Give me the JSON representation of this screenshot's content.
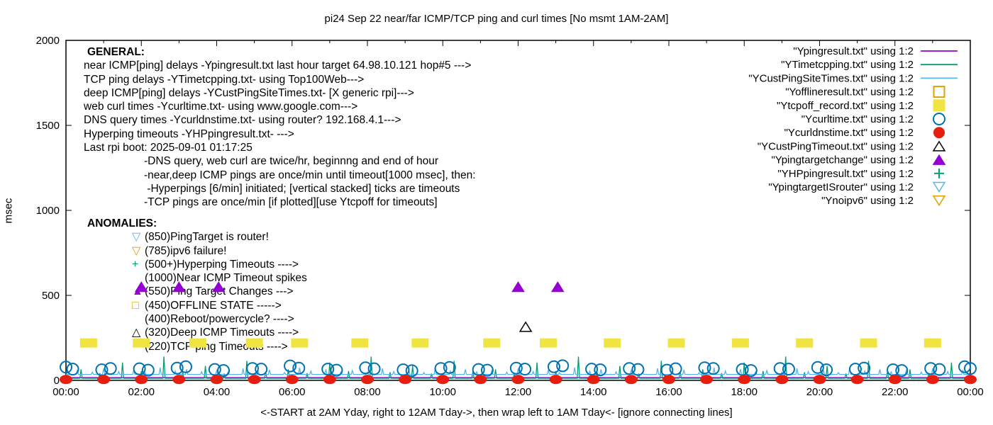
{
  "title": "pi24 Sep 22  near/far ICMP/TCP ping and curl times [No msmt 1AM-2AM]",
  "y_axis": {
    "label": "msec",
    "ticks": [
      0,
      500,
      1000,
      1500,
      2000
    ],
    "ylim": [
      0,
      2000
    ]
  },
  "x_axis": {
    "label": "<-START at 2AM Yday, right to 12AM Tday->, then wrap left to 1AM Tday<- [ignore connecting lines]",
    "tick_labels": [
      "00:00",
      "02:00",
      "04:00",
      "06:00",
      "08:00",
      "10:00",
      "12:00",
      "14:00",
      "16:00",
      "18:00",
      "20:00",
      "22:00",
      "00:00"
    ],
    "tick_step_hours": 2,
    "xlim_hours": [
      0,
      24
    ]
  },
  "general": {
    "heading": "GENERAL:",
    "lines": [
      "near ICMP[ping] delays -Ypingresult.txt last hour target 64.98.10.121 hop#5 --->",
      "TCP ping delays -YTimetcpping.txt- using Top100Web--->",
      "deep ICMP[ping] delays -YCustPingSiteTimes.txt- [X generic rpi]--->",
      "web curl times -Ycurltime.txt- using www.google.com--->",
      "DNS query times -Ycurldnstime.txt- using router? 192.168.4.1--->",
      "Hyperping timeouts -YHPpingresult.txt- --->",
      "Last rpi boot: 2025-09-01 01:17:25"
    ],
    "indented_lines": [
      "-DNS query, web curl are twice/hr, beginnng and end of hour",
      "-near,deep ICMP pings are once/min until timeout[1000 msec], then:",
      " -Hyperpings [6/min] initiated; [vertical stacked] ticks are timeouts",
      "-TCP pings are once/min [if plotted][use Ytcpoff for timeouts]"
    ]
  },
  "anomalies": {
    "heading": "ANOMALIES:",
    "lines": [
      {
        "marker": "triangle-down-open",
        "color": "#56b4e9",
        "text": "(850)PingTarget is router!"
      },
      {
        "marker": "triangle-down-open",
        "color": "#e69f00",
        "text": "(785)ipv6 failure!"
      },
      {
        "marker": "plus",
        "color": "#009e73",
        "text": "(500+)Hyperping Timeouts ---->"
      },
      {
        "marker": "none",
        "color": "#000000",
        "text": "(1000)Near ICMP Timeout spikes"
      },
      {
        "marker": "triangle-fill",
        "color": "#9400d3",
        "text": "(550)Ping Target Changes --->"
      },
      {
        "marker": "square-open",
        "color": "#e69f00",
        "text": "(450)OFFLINE STATE ----->"
      },
      {
        "marker": "none",
        "color": "#000000",
        "text": "(400)Reboot/powercycle? ---->"
      },
      {
        "marker": "triangle-open",
        "color": "#000000",
        "text": "(320)Deep ICMP Timeouts ---->"
      },
      {
        "marker": "none",
        "color": "#000000",
        "text": "(220)TCP ping Timeouts ---->"
      }
    ]
  },
  "legend": {
    "position": "top-right",
    "entries": [
      {
        "label": "\"Ypingresult.txt\" using 1:2",
        "marker": "line",
        "color": "#9400d3"
      },
      {
        "label": "\"YTimetcpping.txt\" using 1:2",
        "marker": "line",
        "color": "#009e73"
      },
      {
        "label": "\"YCustPingSiteTimes.txt\" using 1:2",
        "marker": "line",
        "color": "#56b4e9"
      },
      {
        "label": "\"Yofflineresult.txt\" using 1:2",
        "marker": "square-open",
        "color": "#e69f00"
      },
      {
        "label": "\"Ytcpoff_record.txt\" using 1:2",
        "marker": "square-fill",
        "color": "#f0e442"
      },
      {
        "label": "\"Ycurltime.txt\" using 1:2",
        "marker": "circle-open",
        "color": "#0072b2"
      },
      {
        "label": "\"Ycurldnstime.txt\" using 1:2",
        "marker": "circle-fill",
        "color": "#e51e10"
      },
      {
        "label": "\"YCustPingTimeout.txt\" using 1:2",
        "marker": "triangle-open",
        "color": "#000000"
      },
      {
        "label": "\"Ypingtargetchange\" using 1:2",
        "marker": "triangle-fill",
        "color": "#9400d3"
      },
      {
        "label": "\"YHPpingresult.txt\" using 1:2",
        "marker": "plus",
        "color": "#009e73"
      },
      {
        "label": "\"YpingtargetISrouter\" using 1:2",
        "marker": "triangle-down-open",
        "color": "#56b4e9"
      },
      {
        "label": "\"Ynoipv6\" using 1:2",
        "marker": "triangle-down-open",
        "color": "#e69f00"
      }
    ]
  },
  "chart_data": {
    "type": "line",
    "x_unit": "hour of day (wrapped: starts 2AM yesterday)",
    "xlim": [
      0,
      24
    ],
    "ylim": [
      0,
      2000
    ],
    "grid": false,
    "series": [
      {
        "name": "Ypingresult.txt",
        "style": "line",
        "color": "#9400d3",
        "points": [
          [
            0,
            16
          ],
          [
            24,
            16
          ]
        ]
      },
      {
        "name": "YTimetcpping.txt",
        "style": "baseline-spikes",
        "color": "#009e73",
        "baseline": 12,
        "spike_hours": [
          0.4,
          0.9,
          1.5,
          2.0,
          2.6,
          3.1,
          3.7,
          4.2,
          4.8,
          5.3,
          5.9,
          6.4,
          7.0,
          7.5,
          8.1,
          8.6,
          9.2,
          9.7,
          10.3,
          10.8,
          11.4,
          11.9,
          12.5,
          13.0,
          13.6,
          14.1,
          14.7,
          15.2,
          15.8,
          16.3,
          16.9,
          17.4,
          18.0,
          18.5,
          19.1,
          19.6,
          20.2,
          20.7,
          21.3,
          21.8,
          22.4,
          22.9,
          23.5
        ],
        "spike_heights": [
          65,
          42,
          105,
          55,
          140,
          48,
          85,
          40,
          115,
          52,
          65,
          42,
          105,
          55,
          140,
          48,
          85,
          40,
          115,
          52,
          65,
          42,
          105,
          55,
          140,
          48,
          85,
          40,
          115,
          52,
          65,
          42,
          105,
          55,
          140,
          48,
          85,
          40,
          115,
          52,
          65,
          42,
          105
        ]
      },
      {
        "name": "YCustPingSiteTimes.txt",
        "style": "baseline-spikes",
        "color": "#56b4e9",
        "baseline": 35,
        "spike_hours": [
          0.3,
          0.7,
          1.0,
          1.4,
          1.8,
          2.1,
          2.5,
          2.9,
          3.2,
          3.6,
          4.0,
          4.3,
          4.7,
          5.1,
          5.4,
          5.8,
          6.2,
          6.5,
          6.9,
          7.3,
          7.6,
          8.0,
          8.4,
          8.7,
          9.1,
          9.5,
          9.8,
          10.2,
          10.6,
          10.9,
          11.3,
          11.7,
          12.0,
          12.4,
          12.8,
          13.1,
          13.5,
          13.9,
          14.2,
          14.6,
          15.0,
          15.3,
          15.7,
          16.1,
          16.4,
          16.8,
          17.2,
          17.5,
          17.9,
          18.3,
          18.6,
          19.0,
          19.4,
          19.7,
          20.1,
          20.5,
          20.8,
          21.2,
          21.6,
          21.9,
          22.3,
          22.7,
          23.0,
          23.4,
          23.8
        ],
        "spike_heights": [
          58,
          48,
          70,
          52,
          62,
          46,
          75,
          55,
          65,
          50,
          58,
          48,
          70,
          52,
          62,
          46,
          75,
          55,
          65,
          50,
          58,
          48,
          70,
          52,
          62,
          46,
          75,
          55,
          65,
          50,
          58,
          48,
          70,
          52,
          62,
          46,
          75,
          55,
          65,
          50,
          58,
          48,
          70,
          52,
          62,
          46,
          75,
          55,
          65,
          50,
          58,
          48,
          70,
          52,
          62,
          46,
          75,
          55,
          65,
          50,
          58,
          48,
          70,
          52,
          62
        ]
      },
      {
        "name": "Yofflineresult.txt",
        "style": "square-open",
        "color": "#e69f00",
        "points": []
      },
      {
        "name": "Ytcpoff_record.txt",
        "style": "square-fill",
        "color": "#f0e442",
        "points": [
          [
            0.6,
            220
          ],
          [
            2.0,
            220
          ],
          [
            3.5,
            220
          ],
          [
            5.0,
            220
          ],
          [
            6.2,
            220
          ],
          [
            7.8,
            220
          ],
          [
            9.4,
            220
          ],
          [
            11.3,
            220
          ],
          [
            12.8,
            220
          ],
          [
            14.5,
            220
          ],
          [
            16.2,
            220
          ],
          [
            17.9,
            220
          ],
          [
            19.6,
            220
          ],
          [
            21.3,
            220
          ],
          [
            23.0,
            220
          ]
        ]
      },
      {
        "name": "Ycurltime.txt",
        "style": "circle-open",
        "color": "#0072b2",
        "points": [
          [
            0.0,
            78
          ],
          [
            0.18,
            66
          ],
          [
            0.95,
            62
          ],
          [
            1.18,
            70
          ],
          [
            1.95,
            68
          ],
          [
            2.18,
            60
          ],
          [
            2.95,
            72
          ],
          [
            3.18,
            80
          ],
          [
            3.95,
            64
          ],
          [
            4.18,
            58
          ],
          [
            4.95,
            70
          ],
          [
            5.18,
            66
          ],
          [
            5.95,
            85
          ],
          [
            6.18,
            72
          ],
          [
            6.95,
            66
          ],
          [
            7.18,
            60
          ],
          [
            7.95,
            74
          ],
          [
            8.18,
            68
          ],
          [
            8.95,
            62
          ],
          [
            9.18,
            57
          ],
          [
            9.95,
            70
          ],
          [
            10.18,
            76
          ],
          [
            10.95,
            64
          ],
          [
            11.18,
            60
          ],
          [
            11.95,
            72
          ],
          [
            12.18,
            66
          ],
          [
            12.95,
            80
          ],
          [
            13.18,
            86
          ],
          [
            13.95,
            66
          ],
          [
            14.18,
            62
          ],
          [
            14.95,
            70
          ],
          [
            15.18,
            64
          ],
          [
            15.95,
            60
          ],
          [
            16.18,
            68
          ],
          [
            16.95,
            74
          ],
          [
            17.18,
            70
          ],
          [
            17.95,
            64
          ],
          [
            18.18,
            58
          ],
          [
            18.95,
            70
          ],
          [
            19.18,
            66
          ],
          [
            19.95,
            76
          ],
          [
            20.18,
            62
          ],
          [
            20.95,
            66
          ],
          [
            21.18,
            72
          ],
          [
            21.95,
            62
          ],
          [
            22.18,
            58
          ],
          [
            22.95,
            70
          ],
          [
            23.18,
            64
          ],
          [
            23.85,
            80
          ],
          [
            24.0,
            70
          ]
        ]
      },
      {
        "name": "Ycurldnstime.txt",
        "style": "circle-fill",
        "color": "#e51e10",
        "points": [
          [
            0,
            5
          ],
          [
            1,
            5
          ],
          [
            2,
            5
          ],
          [
            3,
            5
          ],
          [
            4,
            5
          ],
          [
            5,
            5
          ],
          [
            6,
            5
          ],
          [
            7,
            5
          ],
          [
            8,
            5
          ],
          [
            9,
            5
          ],
          [
            10,
            5
          ],
          [
            11,
            5
          ],
          [
            12,
            5
          ],
          [
            13,
            5
          ],
          [
            14,
            5
          ],
          [
            15,
            5
          ],
          [
            16,
            5
          ],
          [
            17,
            5
          ],
          [
            18,
            5
          ],
          [
            19,
            5
          ],
          [
            20,
            5
          ],
          [
            21,
            5
          ],
          [
            22,
            5
          ],
          [
            23,
            5
          ],
          [
            24,
            5
          ]
        ]
      },
      {
        "name": "YCustPingTimeout.txt",
        "style": "triangle-open",
        "color": "#000000",
        "points": [
          [
            12.2,
            315
          ]
        ]
      },
      {
        "name": "Ypingtargetchange",
        "style": "triangle-fill",
        "color": "#9400d3",
        "points": [
          [
            2.0,
            550
          ],
          [
            3.0,
            550
          ],
          [
            4.05,
            550
          ],
          [
            12.0,
            550
          ],
          [
            13.05,
            550
          ]
        ]
      },
      {
        "name": "YHPpingresult.txt",
        "style": "plus",
        "color": "#009e73",
        "points": []
      },
      {
        "name": "YpingtargetISrouter",
        "style": "triangle-down-open",
        "color": "#56b4e9",
        "points": []
      },
      {
        "name": "Ynoipv6",
        "style": "triangle-down-open",
        "color": "#e69f00",
        "points": []
      }
    ]
  }
}
